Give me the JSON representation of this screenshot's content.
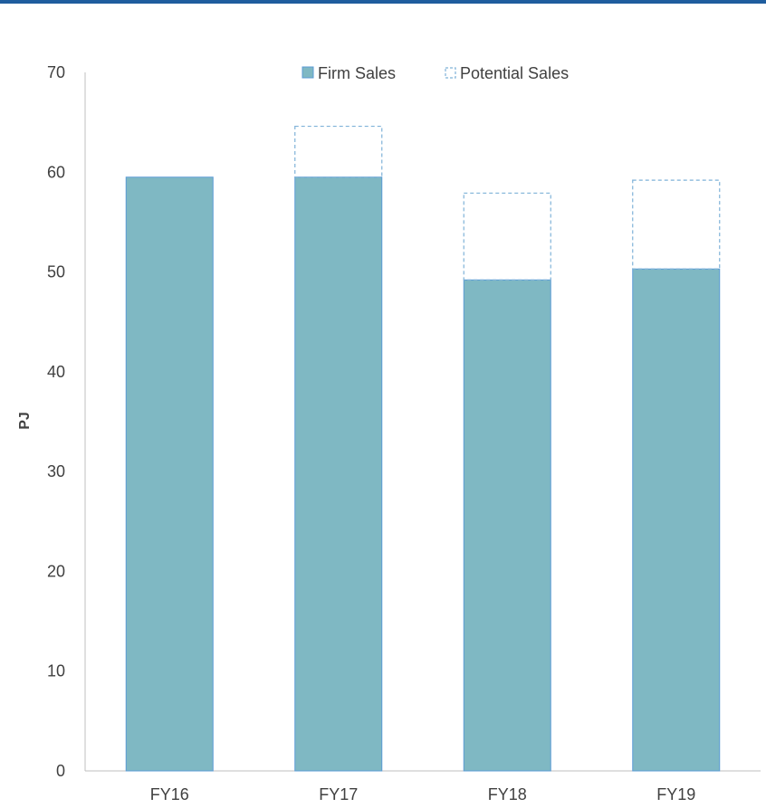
{
  "chart_data": {
    "type": "bar",
    "stacked": true,
    "categories": [
      "FY16",
      "FY17",
      "FY18",
      "FY19"
    ],
    "series": [
      {
        "name": "Firm Sales",
        "values": [
          59.5,
          59.5,
          49.2,
          50.3
        ],
        "color": "#7fb8c3",
        "style": "solid"
      },
      {
        "name": "Potential Sales",
        "values": [
          0,
          5.1,
          8.7,
          8.9
        ],
        "color": "#7fb2d8",
        "style": "dashed-outline"
      }
    ],
    "ylabel": "PJ",
    "ylim": [
      0,
      70
    ],
    "yticks": [
      0,
      10,
      20,
      30,
      40,
      50,
      60,
      70
    ],
    "grid": false,
    "legend_position": "top-center"
  }
}
